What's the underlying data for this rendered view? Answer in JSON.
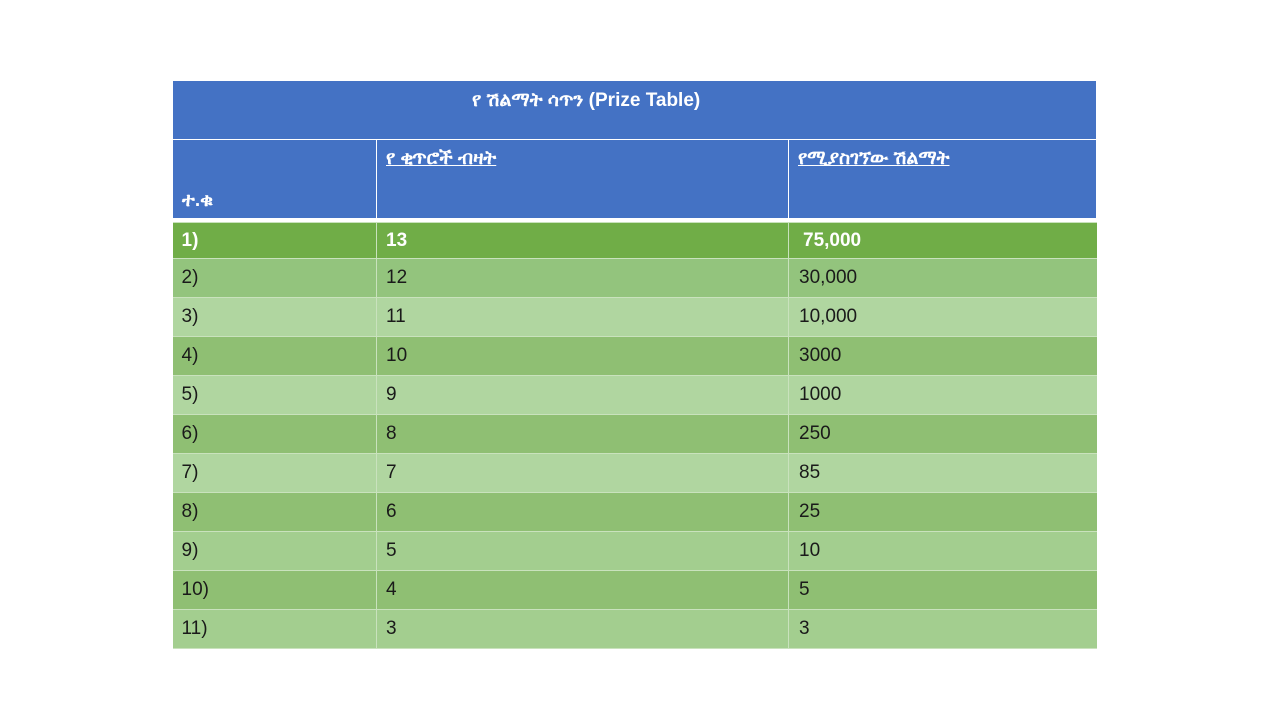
{
  "table": {
    "title": "የ ሽልማት ሳጥን (Prize Table)",
    "headers": {
      "index": "ተ.ቁ",
      "count": "የ ቂጥሮች ብዛት",
      "prize": "የሚያስገኘው ሽልማት"
    },
    "rows": [
      {
        "index": "1)",
        "count": "13",
        "prize": "75,000"
      },
      {
        "index": "2)",
        "count": "12",
        "prize": "30,000"
      },
      {
        "index": "3)",
        "count": "11",
        "prize": "10,000"
      },
      {
        "index": "4)",
        "count": "10",
        "prize": "3000"
      },
      {
        "index": "5)",
        "count": "9",
        "prize": "1000"
      },
      {
        "index": "6)",
        "count": "8",
        "prize": "250"
      },
      {
        "index": "7)",
        "count": "7",
        "prize": "85"
      },
      {
        "index": "8)",
        "count": "6",
        "prize": "25"
      },
      {
        "index": "9)",
        "count": "5",
        "prize": "10"
      },
      {
        "index": "10)",
        "count": "4",
        "prize": "5"
      },
      {
        "index": "11)",
        "count": "3",
        "prize": "3"
      }
    ]
  },
  "colors": {
    "header_blue": "#4472c4",
    "highlight_green": "#70ad47",
    "row_green_dark": "#93c47d",
    "row_green_light": "#b0d6a0"
  }
}
